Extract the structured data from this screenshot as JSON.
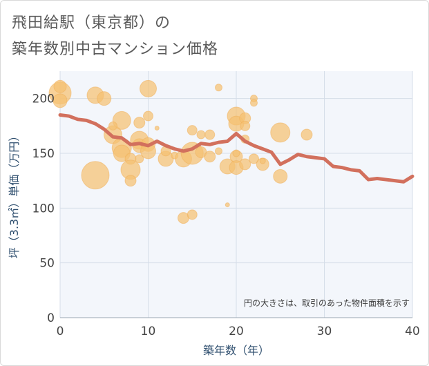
{
  "title_line_1": "飛田給駅（東京都）の",
  "title_line_2": "築年数別中古マンション価格",
  "chart_data": {
    "type": "scatter",
    "title": "飛田給駅（東京都）の築年数別中古マンション価格",
    "xlabel": "築年数（年）",
    "ylabel": "坪（3.3㎡）単価（万円）",
    "xlim": [
      0,
      40
    ],
    "ylim": [
      0,
      225
    ],
    "xticks": [
      0,
      10,
      20,
      30,
      40
    ],
    "yticks": [
      0,
      50,
      100,
      150,
      200
    ],
    "grid": true,
    "note": "円の大きさは、取引のあった物件面積を示す",
    "bubble_color": "#f5c172",
    "line_color": "#d2705d",
    "bubbles": [
      {
        "x": 0,
        "y": 205,
        "r": 16
      },
      {
        "x": 0,
        "y": 211,
        "r": 9
      },
      {
        "x": 0,
        "y": 198,
        "r": 10
      },
      {
        "x": 4,
        "y": 203,
        "r": 12
      },
      {
        "x": 5,
        "y": 200,
        "r": 10
      },
      {
        "x": 10,
        "y": 209,
        "r": 12
      },
      {
        "x": 4,
        "y": 130,
        "r": 20
      },
      {
        "x": 6,
        "y": 167,
        "r": 13
      },
      {
        "x": 7,
        "y": 180,
        "r": 13
      },
      {
        "x": 6,
        "y": 175,
        "r": 6
      },
      {
        "x": 7,
        "y": 155,
        "r": 14
      },
      {
        "x": 7,
        "y": 150,
        "r": 12
      },
      {
        "x": 8,
        "y": 145,
        "r": 8
      },
      {
        "x": 8,
        "y": 135,
        "r": 14
      },
      {
        "x": 8,
        "y": 125,
        "r": 8
      },
      {
        "x": 9,
        "y": 178,
        "r": 8
      },
      {
        "x": 9,
        "y": 162,
        "r": 13
      },
      {
        "x": 9,
        "y": 157,
        "r": 10
      },
      {
        "x": 9,
        "y": 145,
        "r": 6
      },
      {
        "x": 10,
        "y": 184,
        "r": 7
      },
      {
        "x": 10,
        "y": 158,
        "r": 10
      },
      {
        "x": 10,
        "y": 152,
        "r": 11
      },
      {
        "x": 11,
        "y": 173,
        "r": 3
      },
      {
        "x": 12,
        "y": 145,
        "r": 11
      },
      {
        "x": 12,
        "y": 152,
        "r": 7
      },
      {
        "x": 13,
        "y": 148,
        "r": 5
      },
      {
        "x": 14,
        "y": 145,
        "r": 12
      },
      {
        "x": 14,
        "y": 91,
        "r": 8
      },
      {
        "x": 15,
        "y": 94,
        "r": 7
      },
      {
        "x": 15,
        "y": 150,
        "r": 16
      },
      {
        "x": 15,
        "y": 171,
        "r": 7
      },
      {
        "x": 16,
        "y": 167,
        "r": 6
      },
      {
        "x": 16,
        "y": 151,
        "r": 8
      },
      {
        "x": 17,
        "y": 167,
        "r": 7
      },
      {
        "x": 17,
        "y": 147,
        "r": 8
      },
      {
        "x": 18,
        "y": 210,
        "r": 5
      },
      {
        "x": 18,
        "y": 152,
        "r": 5
      },
      {
        "x": 19,
        "y": 138,
        "r": 11
      },
      {
        "x": 19,
        "y": 103,
        "r": 3
      },
      {
        "x": 20,
        "y": 184,
        "r": 13
      },
      {
        "x": 20,
        "y": 177,
        "r": 11
      },
      {
        "x": 20,
        "y": 147,
        "r": 9
      },
      {
        "x": 20,
        "y": 137,
        "r": 10
      },
      {
        "x": 20,
        "y": 150,
        "r": 5
      },
      {
        "x": 21,
        "y": 182,
        "r": 8
      },
      {
        "x": 21,
        "y": 175,
        "r": 7
      },
      {
        "x": 21,
        "y": 163,
        "r": 6
      },
      {
        "x": 21,
        "y": 140,
        "r": 8
      },
      {
        "x": 22,
        "y": 200,
        "r": 5
      },
      {
        "x": 22,
        "y": 196,
        "r": 5
      },
      {
        "x": 22,
        "y": 145,
        "r": 7
      },
      {
        "x": 23,
        "y": 140,
        "r": 9
      },
      {
        "x": 23,
        "y": 143,
        "r": 4
      },
      {
        "x": 25,
        "y": 169,
        "r": 14
      },
      {
        "x": 25,
        "y": 129,
        "r": 10
      },
      {
        "x": 28,
        "y": 167,
        "r": 8
      }
    ],
    "line": {
      "x": [
        0,
        1,
        2,
        3,
        4,
        5,
        6,
        7,
        8,
        9,
        10,
        11,
        12,
        13,
        14,
        15,
        16,
        17,
        18,
        19,
        20,
        21,
        22,
        23,
        24,
        25,
        26,
        27,
        28,
        29,
        30,
        31,
        32,
        33,
        34,
        35,
        36,
        37,
        38,
        39,
        40
      ],
      "y": [
        185,
        184,
        181,
        180,
        177,
        172,
        165,
        164,
        158,
        159,
        157,
        161,
        157,
        154,
        152,
        154,
        159,
        158,
        160,
        161,
        168,
        161,
        157,
        154,
        151,
        140,
        144,
        149,
        147,
        146,
        145,
        138,
        137,
        135,
        134,
        126,
        127,
        126,
        125,
        124,
        129
      ]
    }
  }
}
